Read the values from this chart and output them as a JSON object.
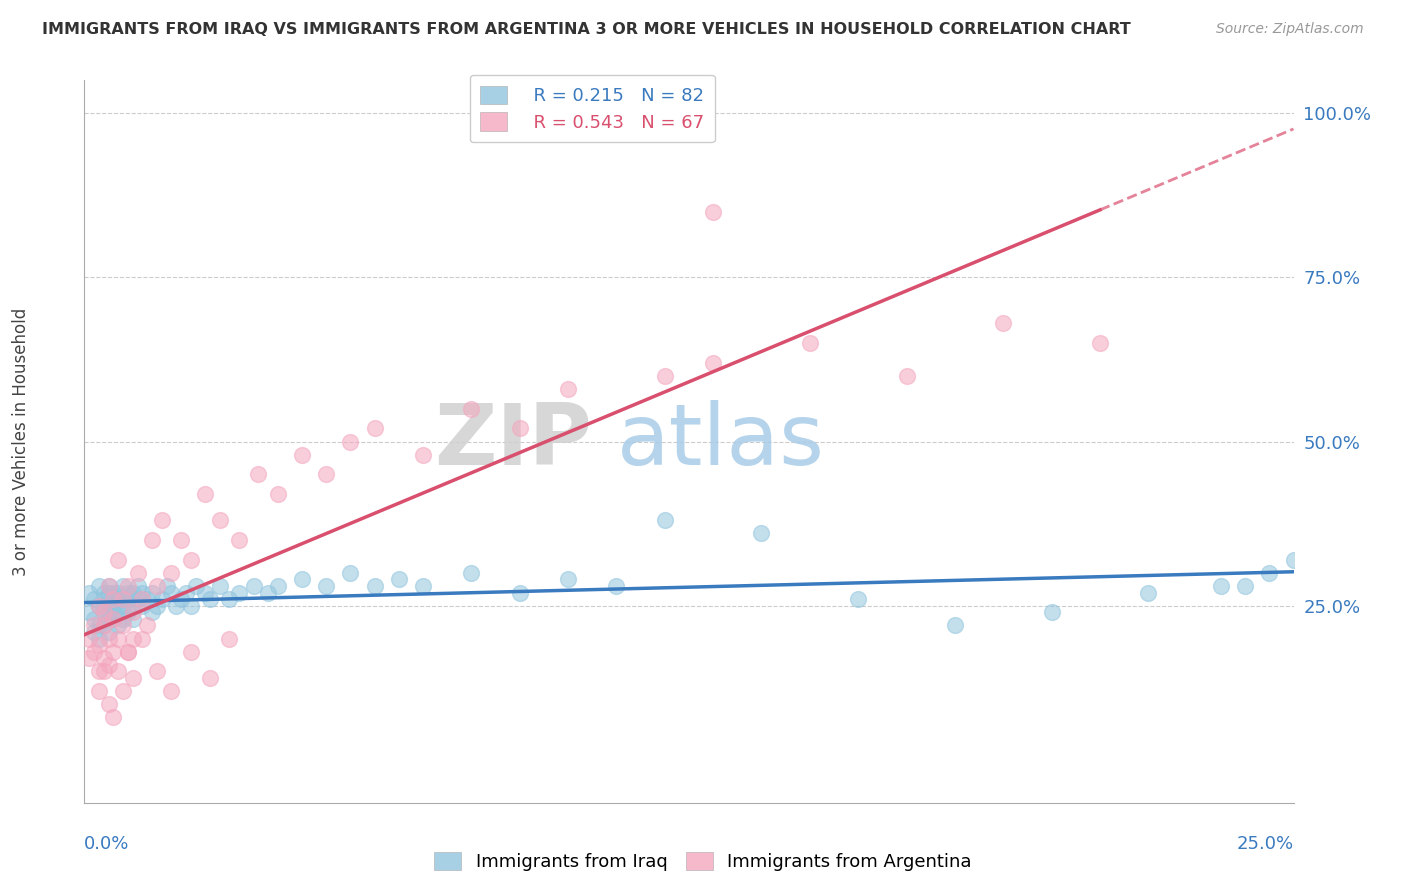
{
  "title": "IMMIGRANTS FROM IRAQ VS IMMIGRANTS FROM ARGENTINA 3 OR MORE VEHICLES IN HOUSEHOLD CORRELATION CHART",
  "source": "Source: ZipAtlas.com",
  "ylabel": "3 or more Vehicles in Household",
  "xlim": [
    0,
    0.25
  ],
  "ylim": [
    -0.05,
    1.05
  ],
  "legend_iraq_R": "R = 0.215",
  "legend_iraq_N": "N = 82",
  "legend_arg_R": "R = 0.543",
  "legend_arg_N": "N = 67",
  "iraq_color": "#92c5de",
  "arg_color": "#f4a6be",
  "iraq_line_color": "#3a7abf",
  "arg_line_color": "#d94f6e",
  "watermark_zip": "ZIP",
  "watermark_atlas": "atlas",
  "background_color": "#ffffff",
  "iraq_x": [
    0.001,
    0.001,
    0.002,
    0.002,
    0.002,
    0.003,
    0.003,
    0.003,
    0.003,
    0.004,
    0.004,
    0.004,
    0.004,
    0.004,
    0.005,
    0.005,
    0.005,
    0.005,
    0.005,
    0.005,
    0.006,
    0.006,
    0.006,
    0.006,
    0.006,
    0.007,
    0.007,
    0.007,
    0.007,
    0.008,
    0.008,
    0.008,
    0.009,
    0.009,
    0.009,
    0.01,
    0.01,
    0.01,
    0.011,
    0.011,
    0.012,
    0.012,
    0.013,
    0.014,
    0.014,
    0.015,
    0.016,
    0.017,
    0.018,
    0.019,
    0.02,
    0.021,
    0.022,
    0.023,
    0.025,
    0.026,
    0.028,
    0.03,
    0.032,
    0.035,
    0.038,
    0.04,
    0.045,
    0.05,
    0.055,
    0.06,
    0.065,
    0.07,
    0.08,
    0.09,
    0.1,
    0.11,
    0.12,
    0.14,
    0.16,
    0.18,
    0.2,
    0.22,
    0.235,
    0.24,
    0.245,
    0.25
  ],
  "iraq_y": [
    0.27,
    0.24,
    0.26,
    0.23,
    0.21,
    0.28,
    0.25,
    0.22,
    0.2,
    0.26,
    0.24,
    0.22,
    0.27,
    0.25,
    0.24,
    0.27,
    0.25,
    0.23,
    0.28,
    0.21,
    0.26,
    0.24,
    0.27,
    0.25,
    0.23,
    0.26,
    0.24,
    0.27,
    0.22,
    0.25,
    0.28,
    0.23,
    0.26,
    0.24,
    0.27,
    0.25,
    0.27,
    0.23,
    0.26,
    0.28,
    0.25,
    0.27,
    0.26,
    0.24,
    0.27,
    0.25,
    0.26,
    0.28,
    0.27,
    0.25,
    0.26,
    0.27,
    0.25,
    0.28,
    0.27,
    0.26,
    0.28,
    0.26,
    0.27,
    0.28,
    0.27,
    0.28,
    0.29,
    0.28,
    0.3,
    0.28,
    0.29,
    0.28,
    0.3,
    0.27,
    0.29,
    0.28,
    0.38,
    0.36,
    0.26,
    0.22,
    0.24,
    0.27,
    0.28,
    0.28,
    0.3,
    0.32
  ],
  "arg_x": [
    0.001,
    0.001,
    0.002,
    0.002,
    0.003,
    0.003,
    0.003,
    0.004,
    0.004,
    0.004,
    0.005,
    0.005,
    0.005,
    0.006,
    0.006,
    0.006,
    0.007,
    0.007,
    0.008,
    0.008,
    0.009,
    0.009,
    0.01,
    0.01,
    0.011,
    0.012,
    0.013,
    0.014,
    0.015,
    0.016,
    0.018,
    0.02,
    0.022,
    0.025,
    0.028,
    0.032,
    0.036,
    0.04,
    0.045,
    0.05,
    0.055,
    0.06,
    0.07,
    0.08,
    0.09,
    0.1,
    0.12,
    0.13,
    0.15,
    0.17,
    0.19,
    0.21,
    0.003,
    0.004,
    0.005,
    0.006,
    0.007,
    0.008,
    0.009,
    0.01,
    0.012,
    0.015,
    0.018,
    0.022,
    0.026,
    0.03,
    0.13
  ],
  "arg_y": [
    0.2,
    0.17,
    0.22,
    0.18,
    0.25,
    0.15,
    0.19,
    0.22,
    0.17,
    0.24,
    0.2,
    0.28,
    0.16,
    0.26,
    0.18,
    0.23,
    0.2,
    0.32,
    0.26,
    0.22,
    0.18,
    0.28,
    0.24,
    0.2,
    0.3,
    0.26,
    0.22,
    0.35,
    0.28,
    0.38,
    0.3,
    0.35,
    0.32,
    0.42,
    0.38,
    0.35,
    0.45,
    0.42,
    0.48,
    0.45,
    0.5,
    0.52,
    0.48,
    0.55,
    0.52,
    0.58,
    0.6,
    0.62,
    0.65,
    0.6,
    0.68,
    0.65,
    0.12,
    0.15,
    0.1,
    0.08,
    0.15,
    0.12,
    0.18,
    0.14,
    0.2,
    0.15,
    0.12,
    0.18,
    0.14,
    0.2,
    0.85
  ]
}
